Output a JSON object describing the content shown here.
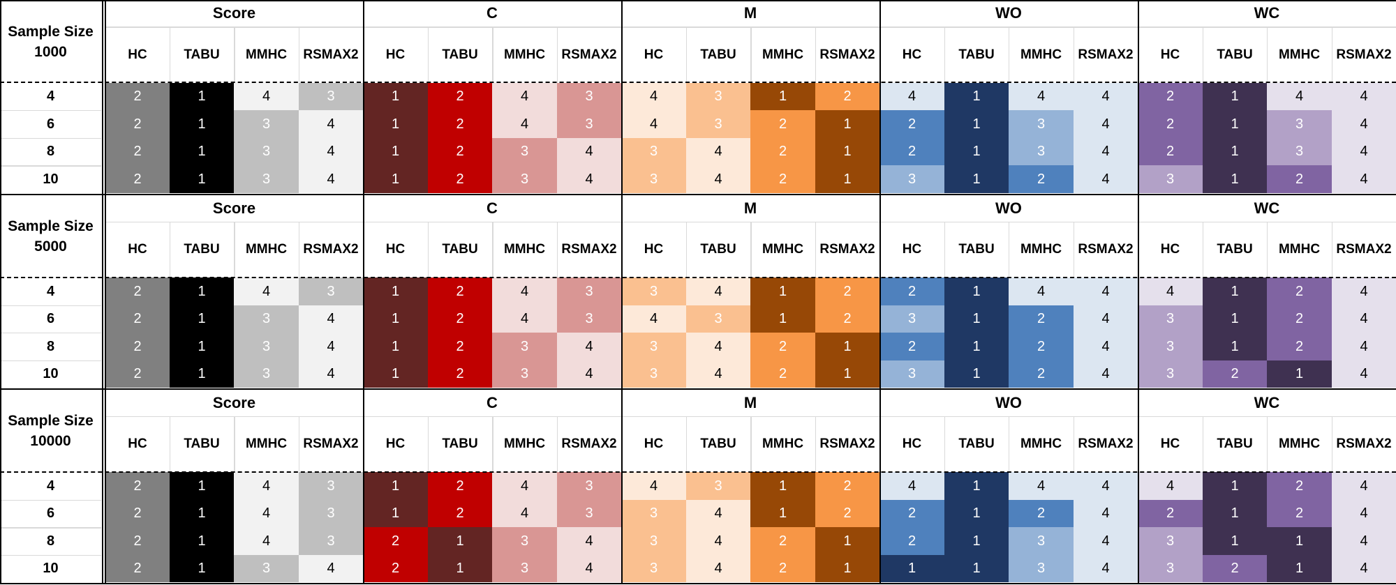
{
  "chart_data": {
    "type": "table",
    "groups": [
      "Score",
      "C",
      "M",
      "WO",
      "WC"
    ],
    "methods": [
      "HC",
      "TABU",
      "MMHC",
      "RSMAX2"
    ],
    "row_labels": [
      "4",
      "6",
      "8",
      "10"
    ],
    "colors": {
      "Score": [
        "#000000",
        "#808080",
        "#bfbfbf",
        "#f2f2f2"
      ],
      "C": [
        "#632523",
        "#c00000",
        "#d99694",
        "#f2dcdb"
      ],
      "M": [
        "#974806",
        "#f79646",
        "#fac090",
        "#fde9d9"
      ],
      "WO": [
        "#1f3864",
        "#4f81bd",
        "#95b3d7",
        "#dce6f1"
      ],
      "WC": [
        "#3f3151",
        "#8064a2",
        "#b2a1c7",
        "#e5e0ec"
      ]
    },
    "blocks": [
      {
        "label_line1": "Sample Size",
        "label_line2": "1000",
        "values": {
          "Score": [
            [
              2,
              1,
              4,
              3
            ],
            [
              2,
              1,
              3,
              4
            ],
            [
              2,
              1,
              3,
              4
            ],
            [
              2,
              1,
              3,
              4
            ]
          ],
          "C": [
            [
              1,
              2,
              4,
              3
            ],
            [
              1,
              2,
              4,
              3
            ],
            [
              1,
              2,
              3,
              4
            ],
            [
              1,
              2,
              3,
              4
            ]
          ],
          "M": [
            [
              4,
              3,
              1,
              2
            ],
            [
              4,
              3,
              2,
              1
            ],
            [
              3,
              4,
              2,
              1
            ],
            [
              3,
              4,
              2,
              1
            ]
          ],
          "WO": [
            [
              4,
              1,
              4,
              4
            ],
            [
              2,
              1,
              3,
              4
            ],
            [
              2,
              1,
              3,
              4
            ],
            [
              3,
              1,
              2,
              4
            ]
          ],
          "WC": [
            [
              2,
              1,
              4,
              4
            ],
            [
              2,
              1,
              3,
              4
            ],
            [
              2,
              1,
              3,
              4
            ],
            [
              3,
              1,
              2,
              4
            ]
          ]
        }
      },
      {
        "label_line1": "Sample Size",
        "label_line2": "5000",
        "values": {
          "Score": [
            [
              2,
              1,
              4,
              3
            ],
            [
              2,
              1,
              3,
              4
            ],
            [
              2,
              1,
              3,
              4
            ],
            [
              2,
              1,
              3,
              4
            ]
          ],
          "C": [
            [
              1,
              2,
              4,
              3
            ],
            [
              1,
              2,
              4,
              3
            ],
            [
              1,
              2,
              3,
              4
            ],
            [
              1,
              2,
              3,
              4
            ]
          ],
          "M": [
            [
              3,
              4,
              1,
              2
            ],
            [
              4,
              3,
              1,
              2
            ],
            [
              3,
              4,
              2,
              1
            ],
            [
              3,
              4,
              2,
              1
            ]
          ],
          "WO": [
            [
              2,
              1,
              4,
              4
            ],
            [
              3,
              1,
              2,
              4
            ],
            [
              2,
              1,
              2,
              4
            ],
            [
              3,
              1,
              2,
              4
            ]
          ],
          "WC": [
            [
              4,
              1,
              2,
              4
            ],
            [
              3,
              1,
              2,
              4
            ],
            [
              3,
              1,
              2,
              4
            ],
            [
              3,
              2,
              1,
              4
            ]
          ]
        }
      },
      {
        "label_line1": "Sample Size",
        "label_line2": "10000",
        "values": {
          "Score": [
            [
              2,
              1,
              4,
              3
            ],
            [
              2,
              1,
              4,
              3
            ],
            [
              2,
              1,
              4,
              3
            ],
            [
              2,
              1,
              3,
              4
            ]
          ],
          "C": [
            [
              1,
              2,
              4,
              3
            ],
            [
              1,
              2,
              4,
              3
            ],
            [
              2,
              1,
              3,
              4
            ],
            [
              2,
              1,
              3,
              4
            ]
          ],
          "M": [
            [
              4,
              3,
              1,
              2
            ],
            [
              3,
              4,
              1,
              2
            ],
            [
              3,
              4,
              2,
              1
            ],
            [
              3,
              4,
              2,
              1
            ]
          ],
          "WO": [
            [
              4,
              1,
              4,
              4
            ],
            [
              2,
              1,
              2,
              4
            ],
            [
              2,
              1,
              3,
              4
            ],
            [
              1,
              1,
              3,
              4
            ]
          ],
          "WC": [
            [
              4,
              1,
              2,
              4
            ],
            [
              2,
              1,
              2,
              4
            ],
            [
              3,
              1,
              1,
              4
            ],
            [
              3,
              2,
              1,
              4
            ]
          ]
        }
      }
    ]
  }
}
